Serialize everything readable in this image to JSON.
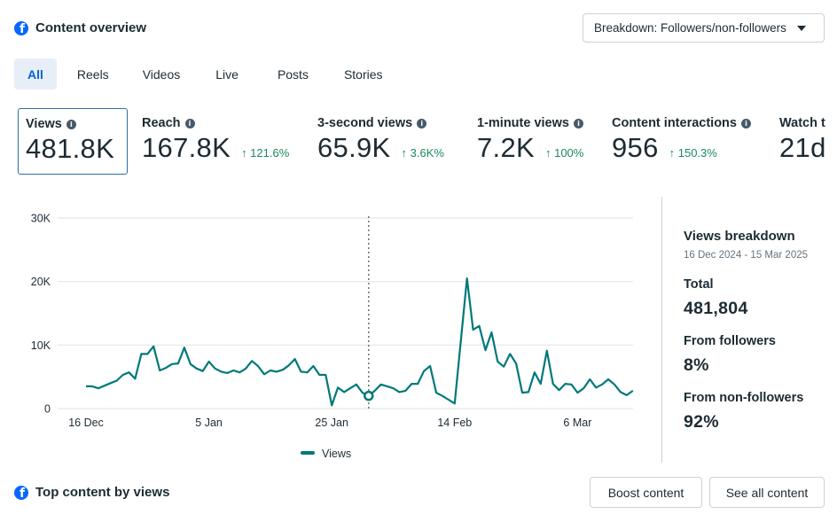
{
  "header": {
    "title": "Content overview",
    "title_icon": "facebook-icon",
    "breakdown_dropdown": "Breakdown: Followers/non-followers"
  },
  "tabs": [
    {
      "label": "All",
      "active": true
    },
    {
      "label": "Reels",
      "active": false
    },
    {
      "label": "Videos",
      "active": false
    },
    {
      "label": "Live",
      "active": false
    },
    {
      "label": "Posts",
      "active": false
    },
    {
      "label": "Stories",
      "active": false
    }
  ],
  "metrics": [
    {
      "label": "Views",
      "value": "481.8K",
      "delta": "",
      "selected": true
    },
    {
      "label": "Reach",
      "value": "167.8K",
      "delta": "↑ 121.6%"
    },
    {
      "label": "3-second views",
      "value": "65.9K",
      "delta": "↑ 3.6K%"
    },
    {
      "label": "1-minute views",
      "value": "7.2K",
      "delta": "↑ 100%"
    },
    {
      "label": "Content interactions",
      "value": "956",
      "delta": "↑ 150.3%"
    },
    {
      "label": "Watch t",
      "value": "21d",
      "delta": ""
    }
  ],
  "colors": {
    "line": "#00787a",
    "accent": "#0064d1",
    "positive": "#1a8a5c",
    "facebook": "#0866ff"
  },
  "chart_data": {
    "type": "line",
    "title": "",
    "xlabel": "",
    "ylabel": "",
    "ylim": [
      0,
      30000
    ],
    "yticks": [
      0,
      10000,
      20000,
      30000
    ],
    "ytick_labels": [
      "0",
      "10K",
      "20K",
      "30K"
    ],
    "x_start": "2024-12-16",
    "x_end": "2025-03-15",
    "xtick_labels": [
      "16 Dec",
      "5 Jan",
      "25 Jan",
      "14 Feb",
      "6 Mar"
    ],
    "xtick_day_index": [
      0,
      20,
      40,
      60,
      80
    ],
    "grid": true,
    "legend": "bottom-center",
    "highlight_day_index": 46,
    "series": [
      {
        "name": "Views",
        "values": [
          3500,
          3500,
          3200,
          3600,
          4000,
          4400,
          5300,
          5700,
          4700,
          8600,
          8600,
          9800,
          6000,
          6400,
          7000,
          7100,
          9600,
          7000,
          6300,
          5900,
          7400,
          6300,
          5800,
          5600,
          6000,
          5700,
          6300,
          7500,
          6700,
          5400,
          6000,
          5800,
          6100,
          6800,
          7800,
          5800,
          5700,
          6700,
          5300,
          5300,
          500,
          3300,
          2600,
          3200,
          3800,
          2500,
          2000,
          2800,
          3800,
          3500,
          3200,
          2600,
          2800,
          3900,
          3900,
          5900,
          6700,
          2500,
          2000,
          1400,
          800,
          10600,
          20500,
          12400,
          13000,
          9200,
          12000,
          7400,
          6600,
          8600,
          7100,
          2500,
          2600,
          5700,
          3900,
          9100,
          3900,
          2900,
          3900,
          3800,
          2500,
          3200,
          4600,
          3300,
          3800,
          4600,
          3800,
          2600,
          2100,
          2800
        ]
      }
    ]
  },
  "breakdown": {
    "title": "Views breakdown",
    "date_range": "16 Dec 2024 - 15 Mar 2025",
    "items": [
      {
        "label": "Total",
        "value": "481,804"
      },
      {
        "label": "From followers",
        "value": "8%"
      },
      {
        "label": "From non-followers",
        "value": "92%"
      }
    ]
  },
  "top_content": {
    "title": "Top content by views",
    "boost_button": "Boost content",
    "see_all_button": "See all content"
  }
}
